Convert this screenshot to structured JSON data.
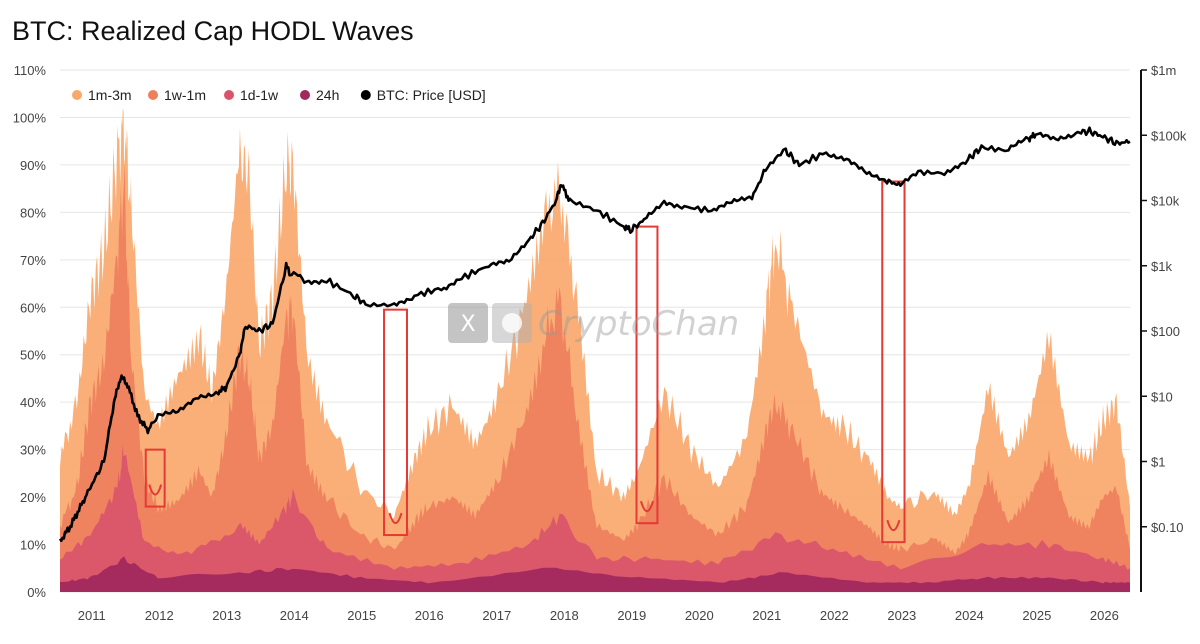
{
  "title": "BTC: Realized Cap HODL Waves",
  "watermark": "CryptoChan",
  "colors": {
    "band_1m_3m": "#f9a86b",
    "band_1w_1m": "#ee7f5e",
    "band_1d_1w": "#d9546a",
    "band_24h": "#a2285e",
    "price": "#000000",
    "highlight": "#e53935"
  },
  "chart_data": {
    "type": "area",
    "title": "BTC: Realized Cap HODL Waves",
    "x_unit": "year",
    "xlim": [
      2010.55,
      2026.4
    ],
    "ylim_left": [
      0,
      110
    ],
    "y_left_ticks": [
      "0%",
      "10%",
      "20%",
      "30%",
      "40%",
      "50%",
      "60%",
      "70%",
      "80%",
      "90%",
      "100%",
      "110%"
    ],
    "y_right_scale": "log",
    "ylim_right": [
      0.01,
      1000000
    ],
    "y_right_ticks": [
      {
        "label": "$0.10",
        "value": 0.1
      },
      {
        "label": "$1",
        "value": 1
      },
      {
        "label": "$10",
        "value": 10
      },
      {
        "label": "$100",
        "value": 100
      },
      {
        "label": "$1k",
        "value": 1000
      },
      {
        "label": "$10k",
        "value": 10000
      },
      {
        "label": "$100k",
        "value": 100000
      },
      {
        "label": "$1m",
        "value": 1000000
      }
    ],
    "x_ticks": [
      "2011",
      "2012",
      "2013",
      "2014",
      "2015",
      "2016",
      "2017",
      "2018",
      "2019",
      "2020",
      "2021",
      "2022",
      "2023",
      "2024",
      "2025",
      "2026"
    ],
    "legend": [
      {
        "name": "1m-3m",
        "color": "#f9a86b"
      },
      {
        "name": "1w-1m",
        "color": "#ee7f5e"
      },
      {
        "name": "1d-1w",
        "color": "#d9546a"
      },
      {
        "name": "24h",
        "color": "#a2285e"
      },
      {
        "name": "BTC: Price [USD]",
        "color": "#000000"
      }
    ],
    "series": [
      {
        "name": "1m-3m",
        "unit": "% cumulative top",
        "x": [
          2010.55,
          2010.8,
          2011.0,
          2011.2,
          2011.4,
          2011.5,
          2011.6,
          2011.8,
          2012.0,
          2012.3,
          2012.6,
          2012.8,
          2013.0,
          2013.2,
          2013.35,
          2013.5,
          2013.7,
          2013.9,
          2014.0,
          2014.2,
          2014.5,
          2015.0,
          2015.5,
          2015.8,
          2016.0,
          2016.4,
          2016.7,
          2017.0,
          2017.4,
          2017.7,
          2017.95,
          2018.2,
          2018.5,
          2018.9,
          2019.1,
          2019.5,
          2019.9,
          2020.3,
          2020.7,
          2021.0,
          2021.15,
          2021.4,
          2021.8,
          2022.1,
          2022.5,
          2022.8,
          2023.0,
          2023.5,
          2023.8,
          2024.0,
          2024.3,
          2024.6,
          2024.9,
          2025.2,
          2025.5,
          2025.8,
          2026.0,
          2026.2,
          2026.4
        ],
        "values": [
          28,
          40,
          62,
          72,
          92,
          98,
          82,
          42,
          35,
          47,
          55,
          42,
          62,
          92,
          88,
          52,
          62,
          90,
          90,
          52,
          37,
          22,
          16,
          28,
          34,
          40,
          32,
          40,
          58,
          78,
          85,
          62,
          25,
          20,
          25,
          42,
          30,
          22,
          32,
          60,
          74,
          60,
          40,
          36,
          28,
          20,
          18,
          21,
          16,
          22,
          44,
          28,
          35,
          52,
          30,
          28,
          36,
          40,
          18
        ]
      },
      {
        "name": "1w-1m",
        "unit": "% cumulative top",
        "x": [
          2010.55,
          2010.8,
          2011.0,
          2011.2,
          2011.4,
          2011.5,
          2011.6,
          2011.8,
          2012.0,
          2012.3,
          2012.6,
          2012.8,
          2013.0,
          2013.2,
          2013.35,
          2013.5,
          2013.7,
          2013.9,
          2014.0,
          2014.2,
          2014.5,
          2015.0,
          2015.5,
          2015.8,
          2016.0,
          2016.4,
          2016.7,
          2017.0,
          2017.4,
          2017.7,
          2017.95,
          2018.2,
          2018.5,
          2018.9,
          2019.1,
          2019.5,
          2019.9,
          2020.3,
          2020.7,
          2021.0,
          2021.15,
          2021.4,
          2021.8,
          2022.1,
          2022.5,
          2022.8,
          2023.0,
          2023.5,
          2023.8,
          2024.0,
          2024.3,
          2024.6,
          2024.9,
          2025.2,
          2025.5,
          2025.8,
          2026.0,
          2026.2,
          2026.4
        ],
        "values": [
          14,
          22,
          40,
          48,
          72,
          86,
          50,
          24,
          18,
          20,
          26,
          20,
          32,
          50,
          45,
          28,
          35,
          58,
          60,
          28,
          20,
          12,
          9,
          15,
          18,
          20,
          16,
          22,
          36,
          52,
          62,
          38,
          14,
          11,
          14,
          24,
          16,
          12,
          18,
          34,
          40,
          34,
          22,
          18,
          14,
          10,
          9,
          11,
          8,
          12,
          24,
          14,
          19,
          28,
          16,
          14,
          20,
          22,
          9
        ]
      },
      {
        "name": "1d-1w",
        "unit": "% cumulative top",
        "x": [
          2010.55,
          2011.0,
          2011.4,
          2011.5,
          2011.8,
          2012.5,
          2013.2,
          2013.5,
          2013.9,
          2014.0,
          2014.5,
          2015.5,
          2016.5,
          2017.5,
          2017.95,
          2018.5,
          2019.3,
          2020.3,
          2021.15,
          2022.0,
          2023.0,
          2024.2,
          2025.2,
          2026.0,
          2026.4
        ],
        "values": [
          7,
          12,
          22,
          30,
          10,
          8,
          14,
          10,
          18,
          20,
          9,
          5,
          6,
          10,
          16,
          7,
          7,
          6,
          12,
          9,
          5,
          10,
          10,
          7,
          5
        ]
      },
      {
        "name": "24h",
        "unit": "% cumulative top",
        "x": [
          2010.55,
          2011.0,
          2011.5,
          2012.0,
          2013.2,
          2014.0,
          2015.0,
          2016.0,
          2017.9,
          2019.0,
          2020.3,
          2021.2,
          2022.5,
          2023.5,
          2024.2,
          2025.2,
          2026.0,
          2026.4
        ],
        "values": [
          2,
          3,
          7,
          3,
          4,
          5,
          3,
          2,
          5,
          3,
          2,
          4,
          2,
          2,
          3,
          3,
          2,
          2
        ]
      },
      {
        "name": "BTC: Price [USD]",
        "unit": "USD (log scale)",
        "x": [
          2010.55,
          2010.7,
          2010.85,
          2011.0,
          2011.2,
          2011.35,
          2011.45,
          2011.55,
          2011.7,
          2011.85,
          2012.0,
          2012.3,
          2012.6,
          2012.9,
          2013.0,
          2013.2,
          2013.3,
          2013.5,
          2013.7,
          2013.9,
          2013.95,
          2014.2,
          2014.5,
          2014.9,
          2015.1,
          2015.5,
          2015.8,
          2016.2,
          2016.5,
          2016.9,
          2017.2,
          2017.5,
          2017.7,
          2017.9,
          2017.97,
          2018.1,
          2018.5,
          2018.9,
          2019.0,
          2019.2,
          2019.5,
          2019.8,
          2020.2,
          2020.5,
          2020.8,
          2021.0,
          2021.3,
          2021.5,
          2021.9,
          2022.2,
          2022.5,
          2022.8,
          2023.0,
          2023.3,
          2023.7,
          2024.0,
          2024.2,
          2024.6,
          2024.9,
          2025.0,
          2025.3,
          2025.6,
          2025.8,
          2026.0,
          2026.2,
          2026.4
        ],
        "values": [
          0.06,
          0.1,
          0.2,
          0.4,
          1.0,
          8.0,
          20,
          15,
          5,
          3,
          5,
          5.5,
          10,
          12,
          13,
          40,
          120,
          100,
          130,
          1000,
          800,
          600,
          600,
          350,
          250,
          250,
          350,
          450,
          650,
          1000,
          1100,
          2500,
          4500,
          10000,
          18000,
          10000,
          7000,
          4000,
          3500,
          5000,
          10000,
          8000,
          7000,
          9000,
          11000,
          30000,
          58000,
          35000,
          55000,
          42000,
          25000,
          20000,
          17000,
          27000,
          26000,
          43000,
          65000,
          58000,
          90000,
          100000,
          85000,
          110000,
          115000,
          95000,
          75000,
          80000
        ]
      }
    ],
    "highlight_boxes": [
      {
        "x": [
          2011.82,
          2012.1
        ],
        "y": [
          18,
          30
        ]
      },
      {
        "x": [
          2015.35,
          2015.69
        ],
        "y": [
          12,
          59.5
        ]
      },
      {
        "x": [
          2019.09,
          2019.4
        ],
        "y": [
          14.5,
          77
        ]
      },
      {
        "x": [
          2022.73,
          2023.06
        ],
        "y": [
          10.5,
          86.5
        ]
      }
    ],
    "grid": "horizontal"
  }
}
